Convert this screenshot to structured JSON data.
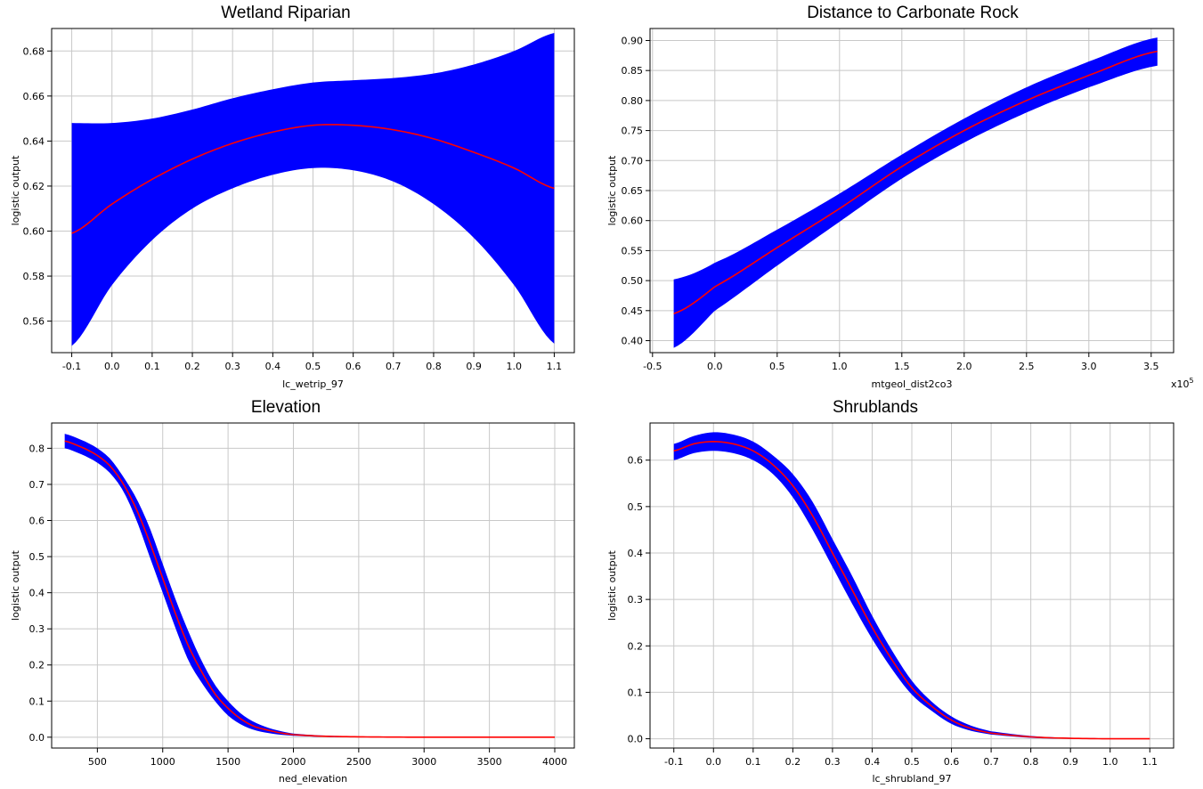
{
  "chart_data": [
    {
      "type": "area",
      "title": "Wetland Riparian",
      "xlabel": "lc_wetrip_97",
      "ylabel": "logistic output",
      "xlim": [
        -0.15,
        1.15
      ],
      "ylim": [
        0.546,
        0.69
      ],
      "xticks": [
        -0.1,
        0.0,
        0.1,
        0.2,
        0.3,
        0.4,
        0.5,
        0.6,
        0.7,
        0.8,
        0.9,
        1.0,
        1.1
      ],
      "xtick_labels": [
        "-0.1",
        "0.0",
        "0.1",
        "0.2",
        "0.3",
        "0.4",
        "0.5",
        "0.6",
        "0.7",
        "0.8",
        "0.9",
        "1.0",
        "1.1"
      ],
      "yticks": [
        0.56,
        0.58,
        0.6,
        0.62,
        0.64,
        0.66,
        0.68
      ],
      "ytick_labels": [
        "0.56",
        "0.58",
        "0.60",
        "0.62",
        "0.64",
        "0.66",
        "0.68"
      ],
      "grid": true,
      "series": [
        {
          "role": "mean",
          "color": "#ff0000",
          "x": [
            -0.1,
            0.0,
            0.1,
            0.2,
            0.3,
            0.4,
            0.5,
            0.6,
            0.7,
            0.8,
            0.9,
            1.0,
            1.1
          ],
          "y": [
            0.599,
            0.612,
            0.623,
            0.632,
            0.639,
            0.644,
            0.647,
            0.647,
            0.645,
            0.641,
            0.635,
            0.628,
            0.619
          ]
        },
        {
          "role": "upper",
          "color": "#0000ff",
          "x": [
            -0.1,
            0.0,
            0.1,
            0.2,
            0.3,
            0.4,
            0.5,
            0.6,
            0.7,
            0.8,
            0.9,
            1.0,
            1.1
          ],
          "y": [
            0.648,
            0.648,
            0.65,
            0.654,
            0.659,
            0.663,
            0.666,
            0.667,
            0.668,
            0.67,
            0.674,
            0.68,
            0.688
          ]
        },
        {
          "role": "lower",
          "color": "#0000ff",
          "x": [
            -0.1,
            0.0,
            0.1,
            0.2,
            0.3,
            0.4,
            0.5,
            0.6,
            0.7,
            0.8,
            0.9,
            1.0,
            1.1
          ],
          "y": [
            0.549,
            0.576,
            0.596,
            0.61,
            0.619,
            0.625,
            0.628,
            0.627,
            0.622,
            0.612,
            0.597,
            0.576,
            0.55
          ]
        }
      ]
    },
    {
      "type": "area",
      "title": "Distance to Carbonate Rock",
      "xlabel": "mtgeol_dist2co3",
      "ylabel": "logistic output",
      "x_scale_label": "x10",
      "x_scale_exponent": "5",
      "xlim": [
        -0.52,
        3.68
      ],
      "ylim": [
        0.38,
        0.92
      ],
      "xticks": [
        -0.5,
        0.0,
        0.5,
        1.0,
        1.5,
        2.0,
        2.5,
        3.0,
        3.5
      ],
      "xtick_labels": [
        "-0.5",
        "0.0",
        "0.5",
        "1.0",
        "1.5",
        "2.0",
        "2.5",
        "3.0",
        "3.5"
      ],
      "yticks": [
        0.4,
        0.45,
        0.5,
        0.55,
        0.6,
        0.65,
        0.7,
        0.75,
        0.8,
        0.85,
        0.9
      ],
      "ytick_labels": [
        "0.40",
        "0.45",
        "0.50",
        "0.55",
        "0.60",
        "0.65",
        "0.70",
        "0.75",
        "0.80",
        "0.85",
        "0.90"
      ],
      "grid": true,
      "series": [
        {
          "role": "mean",
          "color": "#ff0000",
          "x": [
            -0.33,
            0.0,
            0.5,
            1.0,
            1.5,
            2.0,
            2.5,
            3.0,
            3.55
          ],
          "y": [
            0.445,
            0.49,
            0.555,
            0.62,
            0.69,
            0.75,
            0.8,
            0.842,
            0.882
          ]
        },
        {
          "role": "upper",
          "color": "#0000ff",
          "x": [
            -0.33,
            0.0,
            0.5,
            1.0,
            1.5,
            2.0,
            2.5,
            3.0,
            3.55
          ],
          "y": [
            0.502,
            0.53,
            0.585,
            0.645,
            0.71,
            0.77,
            0.822,
            0.865,
            0.905
          ]
        },
        {
          "role": "lower",
          "color": "#0000ff",
          "x": [
            -0.33,
            0.0,
            0.5,
            1.0,
            1.5,
            2.0,
            2.5,
            3.0,
            3.55
          ],
          "y": [
            0.388,
            0.45,
            0.525,
            0.598,
            0.67,
            0.73,
            0.78,
            0.822,
            0.858
          ]
        }
      ]
    },
    {
      "type": "area",
      "title": "Elevation",
      "xlabel": "ned_elevation",
      "ylabel": "logistic output",
      "xlim": [
        150,
        4150
      ],
      "ylim": [
        -0.03,
        0.87
      ],
      "xticks": [
        500,
        1000,
        1500,
        2000,
        2500,
        3000,
        3500,
        4000
      ],
      "xtick_labels": [
        "500",
        "1000",
        "1500",
        "2000",
        "2500",
        "3000",
        "3500",
        "4000"
      ],
      "yticks": [
        0.0,
        0.1,
        0.2,
        0.3,
        0.4,
        0.5,
        0.6,
        0.7,
        0.8
      ],
      "ytick_labels": [
        "0.0",
        "0.1",
        "0.2",
        "0.3",
        "0.4",
        "0.5",
        "0.6",
        "0.7",
        "0.8"
      ],
      "grid": true,
      "series": [
        {
          "role": "mean",
          "color": "#ff0000",
          "x": [
            250,
            400,
            500,
            600,
            700,
            800,
            900,
            1000,
            1100,
            1200,
            1300,
            1400,
            1500,
            1600,
            1700,
            1800,
            1900,
            2000,
            2200,
            2500,
            3000,
            3500,
            4000
          ],
          "y": [
            0.82,
            0.8,
            0.78,
            0.75,
            0.7,
            0.63,
            0.54,
            0.44,
            0.34,
            0.25,
            0.18,
            0.12,
            0.08,
            0.05,
            0.03,
            0.02,
            0.012,
            0.007,
            0.003,
            0.001,
            0.0,
            0.0,
            0.0
          ]
        },
        {
          "role": "upper",
          "color": "#0000ff",
          "x": [
            250,
            400,
            500,
            600,
            700,
            800,
            900,
            1000,
            1100,
            1200,
            1300,
            1400,
            1500,
            1600,
            1700,
            1800,
            1900,
            2000,
            2200,
            2500,
            3000,
            3500,
            4000
          ],
          "y": [
            0.84,
            0.82,
            0.8,
            0.77,
            0.72,
            0.66,
            0.58,
            0.48,
            0.38,
            0.29,
            0.21,
            0.145,
            0.1,
            0.065,
            0.042,
            0.027,
            0.017,
            0.01,
            0.005,
            0.002,
            0.001,
            0.001,
            0.001
          ]
        },
        {
          "role": "lower",
          "color": "#0000ff",
          "x": [
            250,
            400,
            500,
            600,
            700,
            800,
            900,
            1000,
            1100,
            1200,
            1300,
            1400,
            1500,
            1600,
            1700,
            1800,
            1900,
            2000,
            2200,
            2500,
            3000,
            3500,
            4000
          ],
          "y": [
            0.8,
            0.78,
            0.76,
            0.73,
            0.68,
            0.6,
            0.5,
            0.4,
            0.3,
            0.21,
            0.15,
            0.1,
            0.06,
            0.035,
            0.02,
            0.012,
            0.007,
            0.004,
            0.001,
            0.0,
            0.0,
            0.0,
            0.0
          ]
        }
      ]
    },
    {
      "type": "area",
      "title": "Shrublands",
      "xlabel": "lc_shrubland_97",
      "ylabel": "logistic output",
      "xlim": [
        -0.16,
        1.16
      ],
      "ylim": [
        -0.02,
        0.68
      ],
      "xticks": [
        -0.1,
        0.0,
        0.1,
        0.2,
        0.3,
        0.4,
        0.5,
        0.6,
        0.7,
        0.8,
        0.9,
        1.0,
        1.1
      ],
      "xtick_labels": [
        "-0.1",
        "0.0",
        "0.1",
        "0.2",
        "0.3",
        "0.4",
        "0.5",
        "0.6",
        "0.7",
        "0.8",
        "0.9",
        "1.0",
        "1.1"
      ],
      "yticks": [
        0.0,
        0.1,
        0.2,
        0.3,
        0.4,
        0.5,
        0.6
      ],
      "ytick_labels": [
        "0.0",
        "0.1",
        "0.2",
        "0.3",
        "0.4",
        "0.5",
        "0.6"
      ],
      "grid": true,
      "series": [
        {
          "role": "mean",
          "color": "#ff0000",
          "x": [
            -0.1,
            -0.05,
            0.0,
            0.05,
            0.1,
            0.15,
            0.2,
            0.25,
            0.3,
            0.35,
            0.4,
            0.45,
            0.5,
            0.55,
            0.6,
            0.65,
            0.7,
            0.8,
            0.9,
            1.0,
            1.1
          ],
          "y": [
            0.62,
            0.635,
            0.64,
            0.635,
            0.62,
            0.59,
            0.545,
            0.48,
            0.4,
            0.32,
            0.24,
            0.17,
            0.11,
            0.07,
            0.04,
            0.022,
            0.012,
            0.004,
            0.001,
            0.0,
            0.0
          ]
        },
        {
          "role": "upper",
          "color": "#0000ff",
          "x": [
            -0.1,
            -0.05,
            0.0,
            0.05,
            0.1,
            0.15,
            0.2,
            0.25,
            0.3,
            0.35,
            0.4,
            0.45,
            0.5,
            0.55,
            0.6,
            0.65,
            0.7,
            0.8,
            0.9,
            1.0,
            1.1
          ],
          "y": [
            0.635,
            0.652,
            0.66,
            0.655,
            0.64,
            0.61,
            0.57,
            0.51,
            0.43,
            0.35,
            0.265,
            0.19,
            0.125,
            0.08,
            0.048,
            0.028,
            0.016,
            0.006,
            0.002,
            0.001,
            0.0
          ]
        },
        {
          "role": "lower",
          "color": "#0000ff",
          "x": [
            -0.1,
            -0.05,
            0.0,
            0.05,
            0.1,
            0.15,
            0.2,
            0.25,
            0.3,
            0.35,
            0.4,
            0.45,
            0.5,
            0.55,
            0.6,
            0.65,
            0.7,
            0.8,
            0.9,
            1.0,
            1.1
          ],
          "y": [
            0.6,
            0.615,
            0.62,
            0.615,
            0.6,
            0.57,
            0.52,
            0.45,
            0.37,
            0.29,
            0.215,
            0.15,
            0.095,
            0.06,
            0.032,
            0.017,
            0.009,
            0.002,
            0.0,
            0.0,
            0.0
          ]
        }
      ]
    }
  ]
}
